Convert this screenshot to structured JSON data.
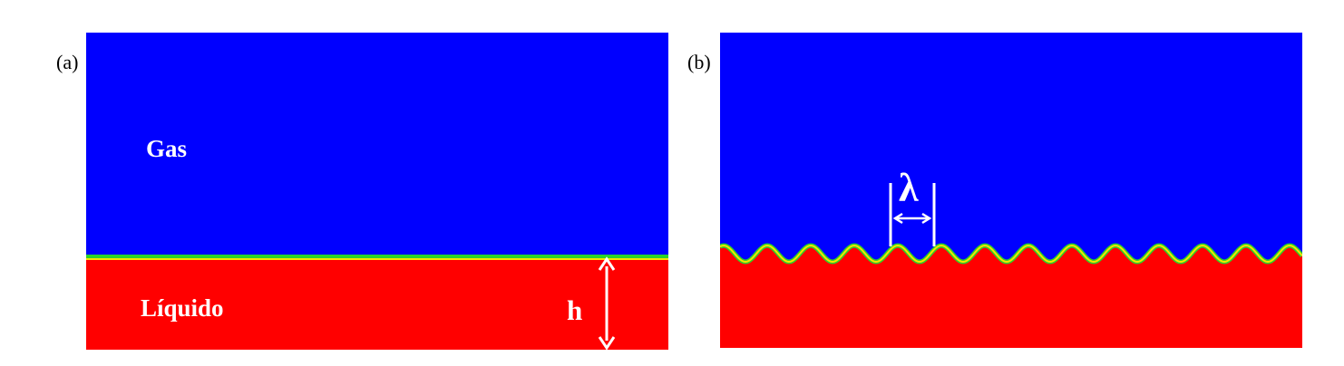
{
  "panel_a": {
    "label": "(a)",
    "gas_label": "Gas",
    "liquid_label": "Líquido",
    "height_label": "h"
  },
  "panel_b": {
    "label": "(b)",
    "wavelength_label": "λ"
  },
  "colors": {
    "gas": "#0000ff",
    "liquid": "#ff0000",
    "interface_green": "#2bd22b",
    "interface_yellow": "#f5e400",
    "annotation": "#ffffff"
  }
}
